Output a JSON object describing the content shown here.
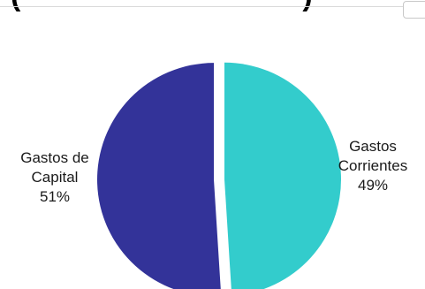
{
  "chart_data": {
    "type": "pie",
    "title": "(",
    "title_end": ")",
    "slices": [
      {
        "label_line1": "Gastos",
        "label_line2": "Corrientes",
        "value": 49,
        "percent_label": "49%",
        "color": "#33cccc"
      },
      {
        "label_line1": "Gastos de",
        "label_line2": "Capital",
        "value": 51,
        "percent_label": "51%",
        "color": "#333399"
      }
    ],
    "legend": "none"
  }
}
